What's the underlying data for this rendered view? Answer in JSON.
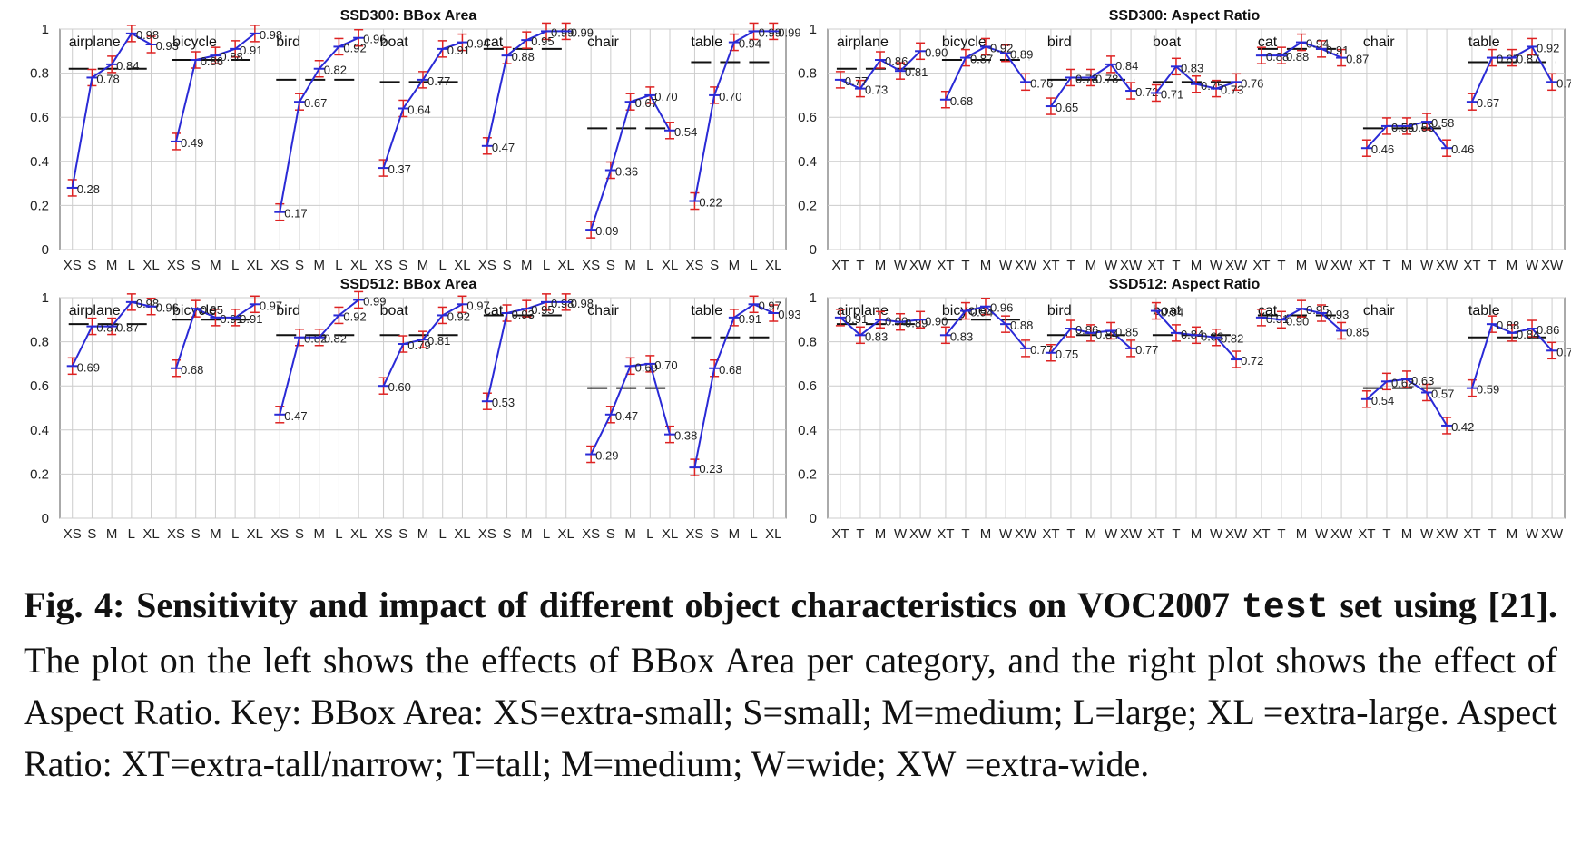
{
  "colors": {
    "line": "#2a2ad6",
    "errorbar": "#dd2222",
    "tick": "#f0a020",
    "baseline": "#111111",
    "grid": "#cccccc"
  },
  "caption": {
    "fig_label": "Fig. 4:",
    "bold_lead": "Sensitivity and impact of different object characteristics on VOC2007",
    "bold_mono": "test",
    "bold_tail": "set using [21].",
    "body": "The plot on the left shows the effects of BBox Area per category, and the right plot shows the effect of Aspect Ratio. Key: BBox Area: XS=extra-small; S=small; M=medium; L=large; XL =extra-large. Aspect Ratio: XT=extra-tall/narrow; T=tall; M=medium; W=wide; XW =extra-wide."
  },
  "chart_data": [
    {
      "type": "line",
      "title": "SSD300: BBox Area",
      "ylim": [
        0,
        1
      ],
      "yticks": [
        "0",
        "0.2",
        "0.4",
        "0.6",
        "0.8",
        "1"
      ],
      "categories": [
        "XS",
        "S",
        "M",
        "L",
        "XL"
      ],
      "groups": [
        {
          "name": "airplane",
          "values": [
            0.28,
            0.78,
            0.84,
            0.98,
            0.93
          ],
          "baseline": 0.82
        },
        {
          "name": "bicycle",
          "values": [
            0.49,
            0.86,
            0.88,
            0.91,
            0.98
          ],
          "baseline": 0.86
        },
        {
          "name": "bird",
          "values": [
            0.17,
            0.67,
            0.82,
            0.92,
            0.96
          ],
          "baseline": 0.77
        },
        {
          "name": "boat",
          "values": [
            0.37,
            0.64,
            0.77,
            0.91,
            0.94
          ],
          "baseline": 0.76
        },
        {
          "name": "cat",
          "values": [
            0.47,
            0.88,
            0.95,
            0.99,
            0.99
          ],
          "baseline": 0.91
        },
        {
          "name": "chair",
          "values": [
            0.09,
            0.36,
            0.67,
            0.7,
            0.54
          ],
          "baseline": 0.55
        },
        {
          "name": "table",
          "values": [
            0.22,
            0.7,
            0.94,
            0.99,
            0.99
          ],
          "baseline": 0.85
        }
      ]
    },
    {
      "type": "line",
      "title": "SSD300: Aspect Ratio",
      "ylim": [
        0,
        1
      ],
      "yticks": [
        "0",
        "0.2",
        "0.4",
        "0.6",
        "0.8",
        "1"
      ],
      "categories": [
        "XT",
        "T",
        "M",
        "W",
        "XW"
      ],
      "groups": [
        {
          "name": "airplane",
          "values": [
            0.77,
            0.73,
            0.86,
            0.81,
            0.9
          ],
          "baseline": 0.82
        },
        {
          "name": "bicycle",
          "values": [
            0.68,
            0.87,
            0.92,
            0.89,
            0.76
          ],
          "baseline": 0.86
        },
        {
          "name": "bird",
          "values": [
            0.65,
            0.78,
            0.78,
            0.84,
            0.72
          ],
          "baseline": 0.77
        },
        {
          "name": "boat",
          "values": [
            0.71,
            0.83,
            0.75,
            0.73,
            0.76
          ],
          "baseline": 0.76
        },
        {
          "name": "cat",
          "values": [
            0.88,
            0.88,
            0.94,
            0.91,
            0.87
          ],
          "baseline": 0.91
        },
        {
          "name": "chair",
          "values": [
            0.46,
            0.56,
            0.56,
            0.58,
            0.46
          ],
          "baseline": 0.55
        },
        {
          "name": "table",
          "values": [
            0.67,
            0.87,
            0.87,
            0.92,
            0.76
          ],
          "baseline": 0.85
        }
      ]
    },
    {
      "type": "line",
      "title": "SSD512: BBox Area",
      "ylim": [
        0,
        1
      ],
      "yticks": [
        "0",
        "0.2",
        "0.4",
        "0.6",
        "0.8",
        "1"
      ],
      "categories": [
        "XS",
        "S",
        "M",
        "L",
        "XL"
      ],
      "groups": [
        {
          "name": "airplane",
          "values": [
            0.69,
            0.87,
            0.87,
            0.98,
            0.96
          ],
          "baseline": 0.88
        },
        {
          "name": "bicycle",
          "values": [
            0.68,
            0.95,
            0.91,
            0.91,
            0.97
          ],
          "baseline": 0.9
        },
        {
          "name": "bird",
          "values": [
            0.47,
            0.82,
            0.82,
            0.92,
            0.99
          ],
          "baseline": 0.83
        },
        {
          "name": "boat",
          "values": [
            0.6,
            0.79,
            0.81,
            0.92,
            0.97
          ],
          "baseline": 0.83
        },
        {
          "name": "cat",
          "values": [
            0.53,
            0.93,
            0.95,
            0.98,
            0.98
          ],
          "baseline": 0.92
        },
        {
          "name": "chair",
          "values": [
            0.29,
            0.47,
            0.69,
            0.7,
            0.38
          ],
          "baseline": 0.59
        },
        {
          "name": "table",
          "values": [
            0.23,
            0.68,
            0.91,
            0.97,
            0.93
          ],
          "baseline": 0.82
        }
      ]
    },
    {
      "type": "line",
      "title": "SSD512: Aspect Ratio",
      "ylim": [
        0,
        1
      ],
      "yticks": [
        "0",
        "0.2",
        "0.4",
        "0.6",
        "0.8",
        "1"
      ],
      "categories": [
        "XT",
        "T",
        "M",
        "W",
        "XW"
      ],
      "groups": [
        {
          "name": "airplane",
          "values": [
            0.91,
            0.83,
            0.9,
            0.89,
            0.9
          ],
          "baseline": 0.88
        },
        {
          "name": "bicycle",
          "values": [
            0.83,
            0.94,
            0.96,
            0.88,
            0.77
          ],
          "baseline": 0.9
        },
        {
          "name": "bird",
          "values": [
            0.75,
            0.86,
            0.84,
            0.85,
            0.77
          ],
          "baseline": 0.83
        },
        {
          "name": "boat",
          "values": [
            0.94,
            0.84,
            0.83,
            0.82,
            0.72
          ],
          "baseline": 0.83
        },
        {
          "name": "cat",
          "values": [
            0.91,
            0.9,
            0.95,
            0.93,
            0.85
          ],
          "baseline": 0.92
        },
        {
          "name": "chair",
          "values": [
            0.54,
            0.62,
            0.63,
            0.57,
            0.42
          ],
          "baseline": 0.59
        },
        {
          "name": "table",
          "values": [
            0.59,
            0.88,
            0.84,
            0.86,
            0.76
          ],
          "baseline": 0.82
        }
      ]
    }
  ]
}
